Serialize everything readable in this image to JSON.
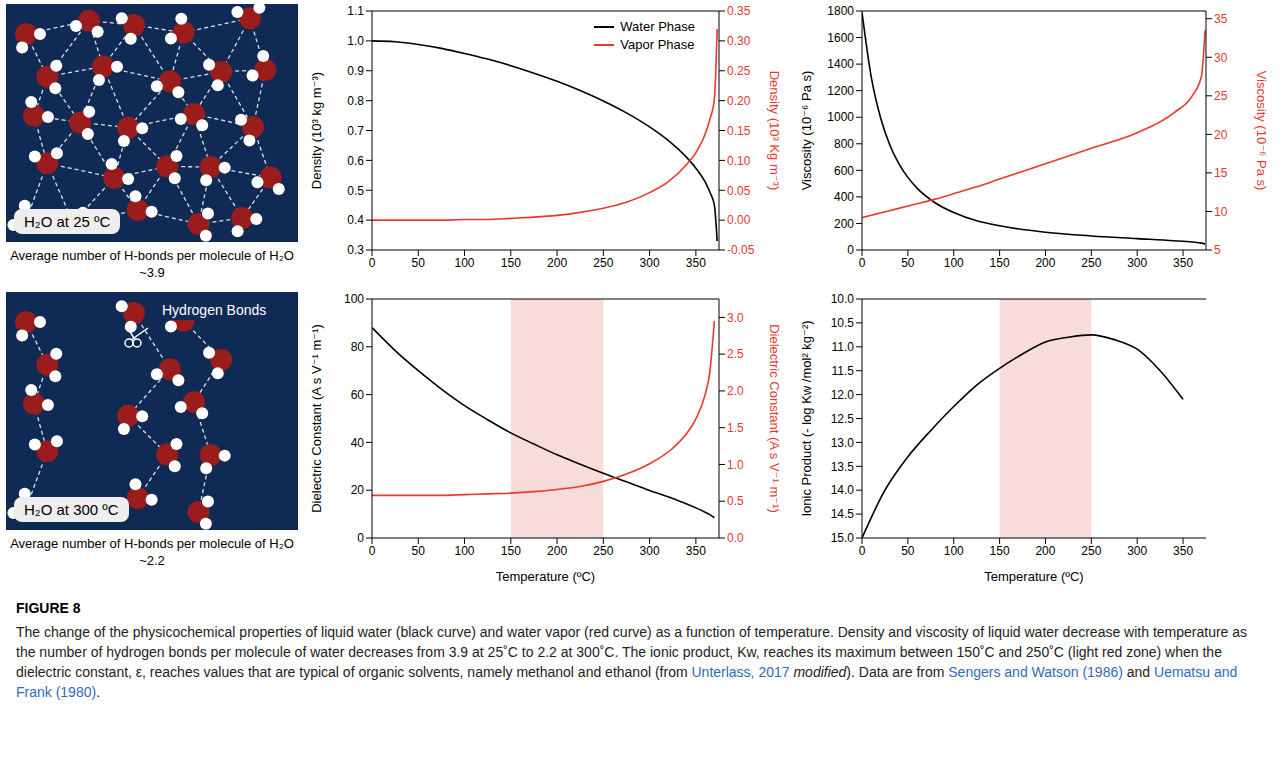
{
  "diagrams": [
    {
      "label": "H₂O at 25 ºC",
      "caption": "Average number of H-bonds per molecule of H₂O ~3.9"
    },
    {
      "label": "H₂O at 300 ºC",
      "caption": "Average number of H-bonds per molecule of H₂O ~2.2",
      "annotation": "Hydrogen Bonds"
    }
  ],
  "chart_data": [
    {
      "type": "line",
      "x": [
        0,
        25,
        50,
        75,
        100,
        125,
        150,
        175,
        200,
        225,
        250,
        275,
        300,
        320,
        340,
        350,
        360,
        365,
        370,
        373
      ],
      "series": [
        {
          "name": "Water Phase",
          "color": "#000000",
          "values": [
            1.0,
            0.997,
            0.988,
            0.975,
            0.958,
            0.939,
            0.917,
            0.892,
            0.865,
            0.834,
            0.799,
            0.759,
            0.712,
            0.667,
            0.61,
            0.574,
            0.528,
            0.495,
            0.45,
            0.33
          ]
        },
        {
          "name": "Vapor Phase",
          "color": "#e8392d",
          "axis": "y2",
          "values": [
            0.0,
            0.0,
            0.0,
            0.0,
            0.001,
            0.001,
            0.003,
            0.005,
            0.008,
            0.013,
            0.02,
            0.03,
            0.046,
            0.064,
            0.093,
            0.113,
            0.144,
            0.168,
            0.203,
            0.32
          ]
        }
      ],
      "xlim": [
        0,
        375
      ],
      "xticks": [
        0,
        50,
        100,
        150,
        200,
        250,
        300,
        350
      ],
      "ylim": [
        0.3,
        1.1
      ],
      "yticks": [
        0.3,
        0.4,
        0.5,
        0.6,
        0.7,
        0.8,
        0.9,
        {
          "value": 1,
          "label": "1.0"
        },
        1.1
      ],
      "y2lim": [
        -0.05,
        0.35
      ],
      "y2ticks": [
        -0.05,
        {
          "value": 0,
          "label": "0.00"
        },
        0.05,
        {
          "value": 0.1,
          "label": "0.10"
        },
        0.15,
        {
          "value": 0.2,
          "label": "0.20"
        },
        0.25,
        {
          "value": 0.3,
          "label": "0.30"
        },
        0.35
      ],
      "ylabel": "Density (10³ kg m⁻³)",
      "y2label": "Density (10³ Kg m⁻³)",
      "legend": "upper right"
    },
    {
      "type": "line",
      "x": [
        0,
        10,
        20,
        30,
        40,
        50,
        60,
        80,
        100,
        125,
        150,
        200,
        250,
        300,
        340,
        360,
        370,
        374
      ],
      "series": [
        {
          "color": "#000000",
          "values": [
            1790,
            1306,
            1002,
            797,
            653,
            547,
            466,
            354,
            282,
            220,
            182,
            134,
            106,
            86,
            70,
            60,
            52,
            45
          ]
        },
        {
          "color": "#e8392d",
          "axis": "y2",
          "values": [
            9.2,
            9.5,
            9.8,
            10.1,
            10.4,
            10.7,
            11.0,
            11.6,
            12.3,
            13.2,
            14.2,
            16.2,
            18.2,
            20.2,
            22.8,
            25.0,
            27.5,
            33.5
          ]
        }
      ],
      "xlim": [
        0,
        375
      ],
      "xticks": [
        0,
        50,
        100,
        150,
        200,
        250,
        300,
        350
      ],
      "ylim": [
        0,
        1800
      ],
      "yticks": [
        0,
        200,
        400,
        600,
        800,
        1000,
        1200,
        1400,
        1600,
        1800
      ],
      "y2lim": [
        5,
        36
      ],
      "y2ticks": [
        5,
        10,
        15,
        20,
        25,
        30,
        35
      ],
      "ylabel": "Viscosity (10⁻⁶ Pa s)",
      "y2label": "Viscosity (10⁻⁶ Pa s)"
    },
    {
      "type": "line",
      "x": [
        0,
        25,
        50,
        75,
        100,
        125,
        150,
        175,
        200,
        225,
        250,
        275,
        300,
        325,
        340,
        350,
        360,
        365,
        370
      ],
      "series": [
        {
          "color": "#000000",
          "values": [
            88.0,
            78.4,
            70.0,
            62.3,
            55.4,
            49.5,
            44.0,
            39.3,
            34.8,
            30.9,
            27.1,
            23.5,
            19.9,
            16.5,
            14.2,
            12.6,
            10.8,
            9.8,
            8.5
          ]
        },
        {
          "color": "#e8392d",
          "axis": "y2",
          "values": [
            0.58,
            0.58,
            0.58,
            0.58,
            0.59,
            0.6,
            0.61,
            0.63,
            0.66,
            0.7,
            0.77,
            0.87,
            1.01,
            1.22,
            1.42,
            1.62,
            1.95,
            2.25,
            2.95
          ]
        }
      ],
      "xlim": [
        0,
        375
      ],
      "xticks": [
        0,
        50,
        100,
        150,
        200,
        250,
        300,
        350
      ],
      "ylim": [
        0,
        100
      ],
      "yticks": [
        0,
        20,
        40,
        60,
        80,
        100
      ],
      "y2lim": [
        0,
        3.25
      ],
      "y2ticks": [
        {
          "value": 0,
          "label": "0.0"
        },
        0.5,
        {
          "value": 1,
          "label": "1.0"
        },
        1.5,
        {
          "value": 2,
          "label": "2.0"
        },
        2.5,
        {
          "value": 3,
          "label": "3.0"
        }
      ],
      "ylabel": "Dielectric Constant (A s V⁻¹ m⁻¹)",
      "y2label": "Dielectric Constant (A s V⁻¹ m⁻¹)",
      "xlabel": "Temperature (ºC)",
      "highlight": [
        150,
        250
      ]
    },
    {
      "type": "line",
      "x": [
        0,
        25,
        50,
        75,
        100,
        125,
        150,
        175,
        200,
        225,
        250,
        275,
        300,
        325,
        350
      ],
      "series": [
        {
          "color": "#000000",
          "values": [
            15.0,
            14.0,
            13.3,
            12.75,
            12.25,
            11.8,
            11.45,
            11.15,
            10.9,
            10.8,
            10.75,
            10.85,
            11.05,
            11.5,
            12.1
          ]
        }
      ],
      "xlim": [
        0,
        375
      ],
      "xticks": [
        0,
        50,
        100,
        150,
        200,
        250,
        300,
        350
      ],
      "ylim": [
        15,
        10
      ],
      "yticks": [
        {
          "value": 10,
          "label": "10.0"
        },
        10.5,
        {
          "value": 11,
          "label": "11.0"
        },
        11.5,
        {
          "value": 12,
          "label": "12.0"
        },
        12.5,
        {
          "value": 13,
          "label": "13.0"
        },
        13.5,
        {
          "value": 14,
          "label": "14.0"
        },
        14.5,
        {
          "value": 15,
          "label": "15.0"
        }
      ],
      "ylabel": "Ionic Product (- log Kw /mol² kg⁻²)",
      "xlabel": "Temperature (ºC)",
      "highlight": [
        150,
        250
      ]
    }
  ],
  "caption": {
    "label": "FIGURE 8",
    "parts": [
      {
        "text": "The change of the physicochemical properties of liquid water (black curve) and water vapor (red curve) as a function of temperature. Density and viscosity of liquid water decrease with temperature as the number of hydrogen bonds per molecule of water decreases from 3.9 at 25˚C to 2.2 at 300˚C. The ionic product, Kw, reaches its maximum between 150˚C and 250˚C (light red zone) when the dielectric constant, ε, reaches values that are typical of organic solvents, namely methanol and ethanol (from ",
        "style": "plain"
      },
      {
        "text": "Unterlass, 2017",
        "style": "link"
      },
      {
        "text": " ",
        "style": "plain"
      },
      {
        "text": "modified",
        "style": "italic"
      },
      {
        "text": "). Data are from ",
        "style": "plain"
      },
      {
        "text": "Sengers and Watson (1986)",
        "style": "link"
      },
      {
        "text": " and ",
        "style": "plain"
      },
      {
        "text": "Uematsu and Frank (1980)",
        "style": "link"
      },
      {
        "text": ".",
        "style": "plain"
      }
    ]
  }
}
